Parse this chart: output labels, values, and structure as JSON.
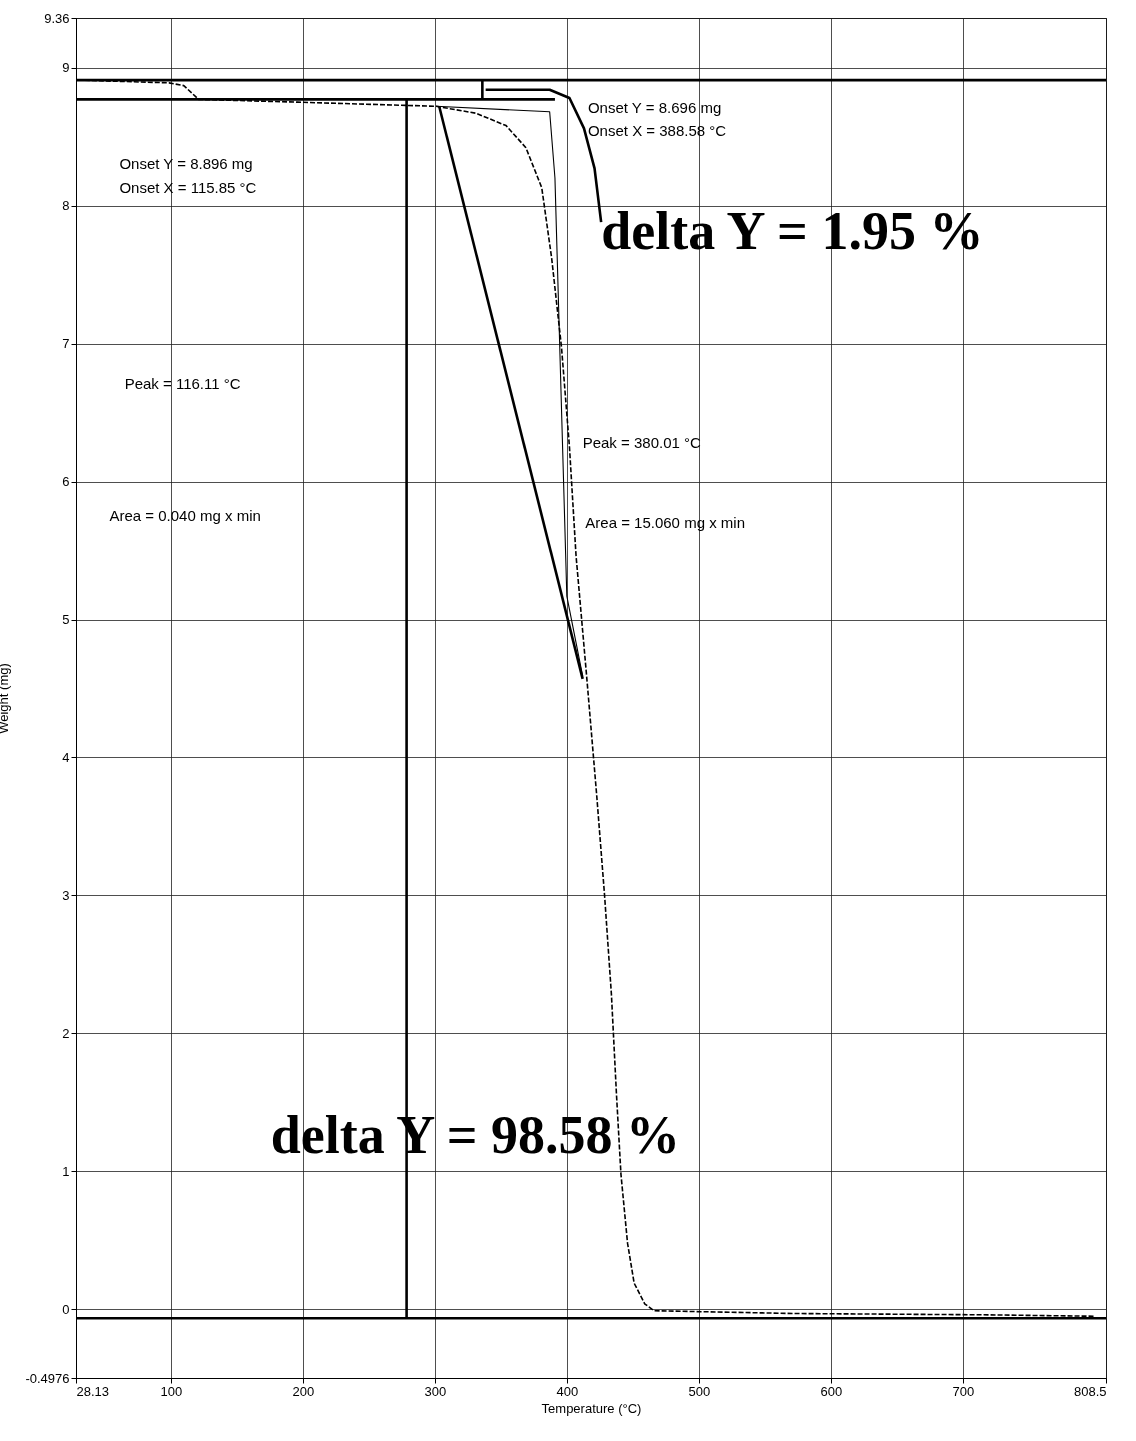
{
  "chart_data": {
    "type": "line",
    "xlabel": "Temperature (°C)",
    "ylabel": "Weight (mg)",
    "xlim": [
      28.13,
      808.5
    ],
    "ylim": [
      -0.4976,
      9.36
    ],
    "xticks": [
      28.13,
      100,
      200,
      300,
      400,
      500,
      600,
      700,
      808.5
    ],
    "yticks": [
      -0.4976,
      0,
      1,
      2,
      3,
      4,
      5,
      6,
      7,
      8,
      9,
      9.36
    ],
    "grid": true,
    "series": [
      {
        "color": "#000000",
        "line_style": "dashed",
        "x": [
          29.5,
          98.5,
          109.8,
          121,
          196,
          301,
          331,
          354,
          369,
          381,
          388.5,
          396,
          402,
          407,
          415,
          422.6,
          428.6,
          433.8,
          437.6,
          441,
          446,
          451,
          459,
          466,
          571,
          721,
          799.7
        ],
        "values": [
          8.91,
          8.89,
          8.87,
          8.77,
          8.75,
          8.72,
          8.67,
          8.58,
          8.42,
          8.13,
          7.62,
          6.97,
          6.25,
          5.46,
          4.59,
          3.73,
          3.0,
          2.28,
          1.56,
          0.98,
          0.48,
          0.19,
          0.04,
          -0.01,
          -0.03,
          -0.04,
          -0.05
        ]
      },
      {
        "color": "#000000",
        "line_style": "solid",
        "x": [
          301,
          387,
          391,
          400,
          412
        ],
        "values": [
          8.72,
          8.68,
          8.2,
          5.17,
          4.59
        ]
      },
      {
        "color": "#000000",
        "line_style": "solid",
        "x": [
          303.3,
          412
        ],
        "values": [
          8.72,
          4.57
        ]
      },
      {
        "color": "#000000",
        "line_style": "solid",
        "x": [
          338.5,
          387,
          402,
          413,
          421,
          426
        ],
        "values": [
          8.84,
          8.84,
          8.78,
          8.56,
          8.27,
          7.88
        ]
      },
      {
        "color": "#000000",
        "line_style": "solid",
        "x": [
          28.13,
          808.5
        ],
        "values": [
          8.91,
          8.91
        ]
      },
      {
        "color": "#000000",
        "line_style": "solid",
        "x": [
          28.13,
          391
        ],
        "values": [
          8.77,
          8.77
        ]
      },
      {
        "color": "#000000",
        "line_style": "solid",
        "x": [
          336,
          336
        ],
        "values": [
          8.91,
          8.77
        ]
      },
      {
        "color": "#000000",
        "line_style": "solid",
        "x": [
          278.6,
          278.6
        ],
        "values": [
          8.77,
          -0.065
        ]
      },
      {
        "color": "#000000",
        "line_style": "solid",
        "x": [
          28.13,
          808.5
        ],
        "values": [
          -0.065,
          -0.065
        ]
      }
    ],
    "annotations": [
      "Onset Y = 8.896 mg",
      "Onset X = 115.85 °C",
      "Peak = 116.11 °C",
      "Area = 0.040 mg x min",
      "Onset Y = 8.696 mg",
      "Onset X = 388.58 °C",
      "delta Y = 1.95 %",
      "Peak = 380.01 °C",
      "Area = 15.060 mg x min",
      "delta Y = 98.58 %"
    ]
  }
}
